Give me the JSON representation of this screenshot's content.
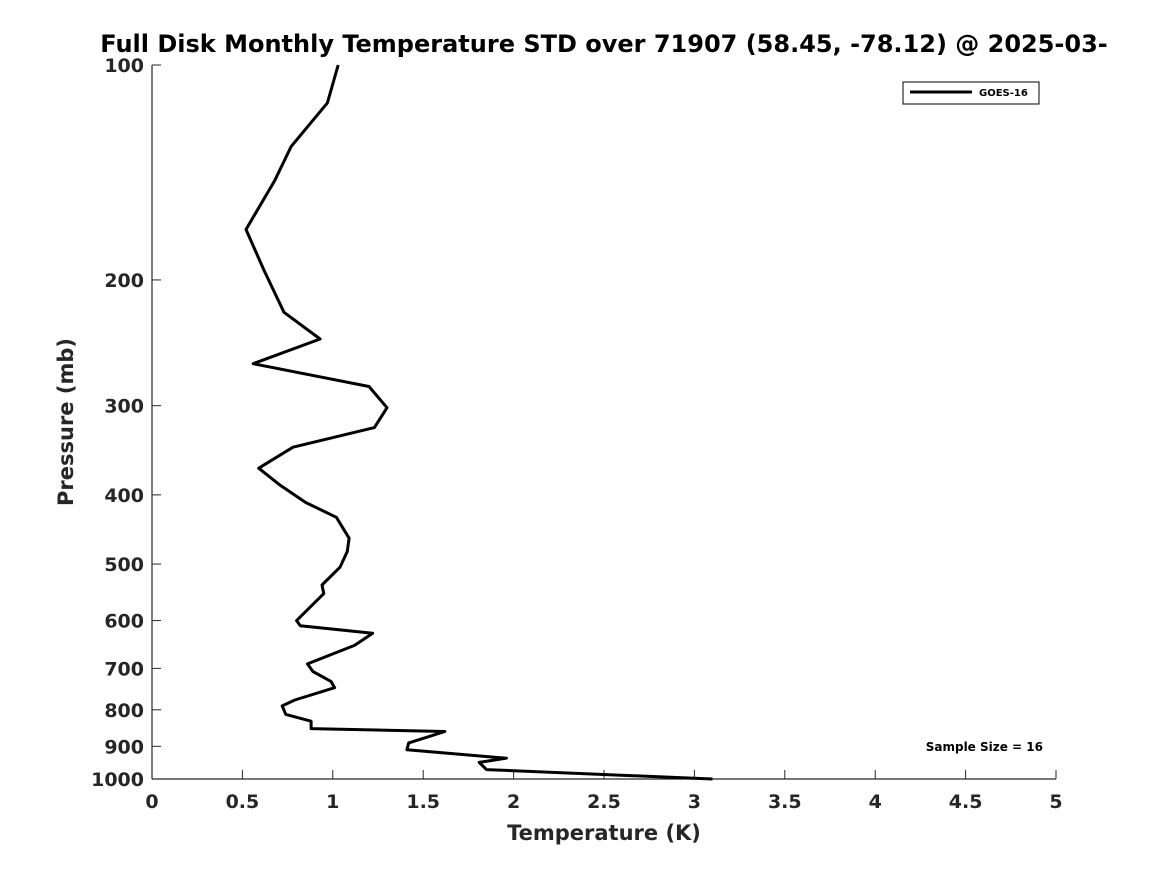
{
  "chart_data": {
    "type": "line",
    "title": "Full Disk Monthly Temperature STD over 71907 (58.45, -78.12) @ 2025-03-",
    "xlabel": "Temperature (K)",
    "ylabel": "Pressure (mb)",
    "xlim": [
      0,
      5
    ],
    "ylim": [
      1000,
      100
    ],
    "y_scale": "log",
    "x_ticks": [
      "0",
      "0.5",
      "1",
      "1.5",
      "2",
      "2.5",
      "3",
      "3.5",
      "4",
      "4.5",
      "5"
    ],
    "y_ticks": [
      "100",
      "200",
      "300",
      "400",
      "500",
      "600",
      "700",
      "800",
      "900",
      "1000"
    ],
    "grid": false,
    "legend": {
      "placement": "top-right",
      "entries": [
        "GOES-16"
      ]
    },
    "annotation": "Sample Size = 16",
    "series": [
      {
        "name": "GOES-16",
        "color": "#000000",
        "x": [
          1.03,
          0.97,
          0.77,
          0.68,
          0.52,
          0.62,
          0.73,
          0.93,
          0.56,
          1.2,
          1.3,
          1.23,
          0.78,
          0.59,
          0.71,
          0.85,
          1.02,
          1.09,
          1.08,
          1.04,
          0.94,
          0.95,
          0.8,
          0.82,
          1.22,
          1.12,
          0.86,
          0.89,
          0.99,
          1.01,
          0.79,
          0.72,
          0.74,
          0.88,
          0.88,
          1.62,
          1.42,
          1.41,
          1.96,
          1.81,
          1.85,
          3.1
        ],
        "y": [
          100,
          113,
          130,
          145,
          170,
          194,
          222,
          242,
          262,
          282,
          302,
          322,
          343,
          367,
          388,
          410,
          430,
          460,
          480,
          505,
          535,
          550,
          600,
          610,
          625,
          650,
          690,
          707,
          730,
          745,
          775,
          790,
          812,
          830,
          850,
          858,
          890,
          910,
          935,
          948,
          970,
          1000
        ]
      }
    ]
  }
}
